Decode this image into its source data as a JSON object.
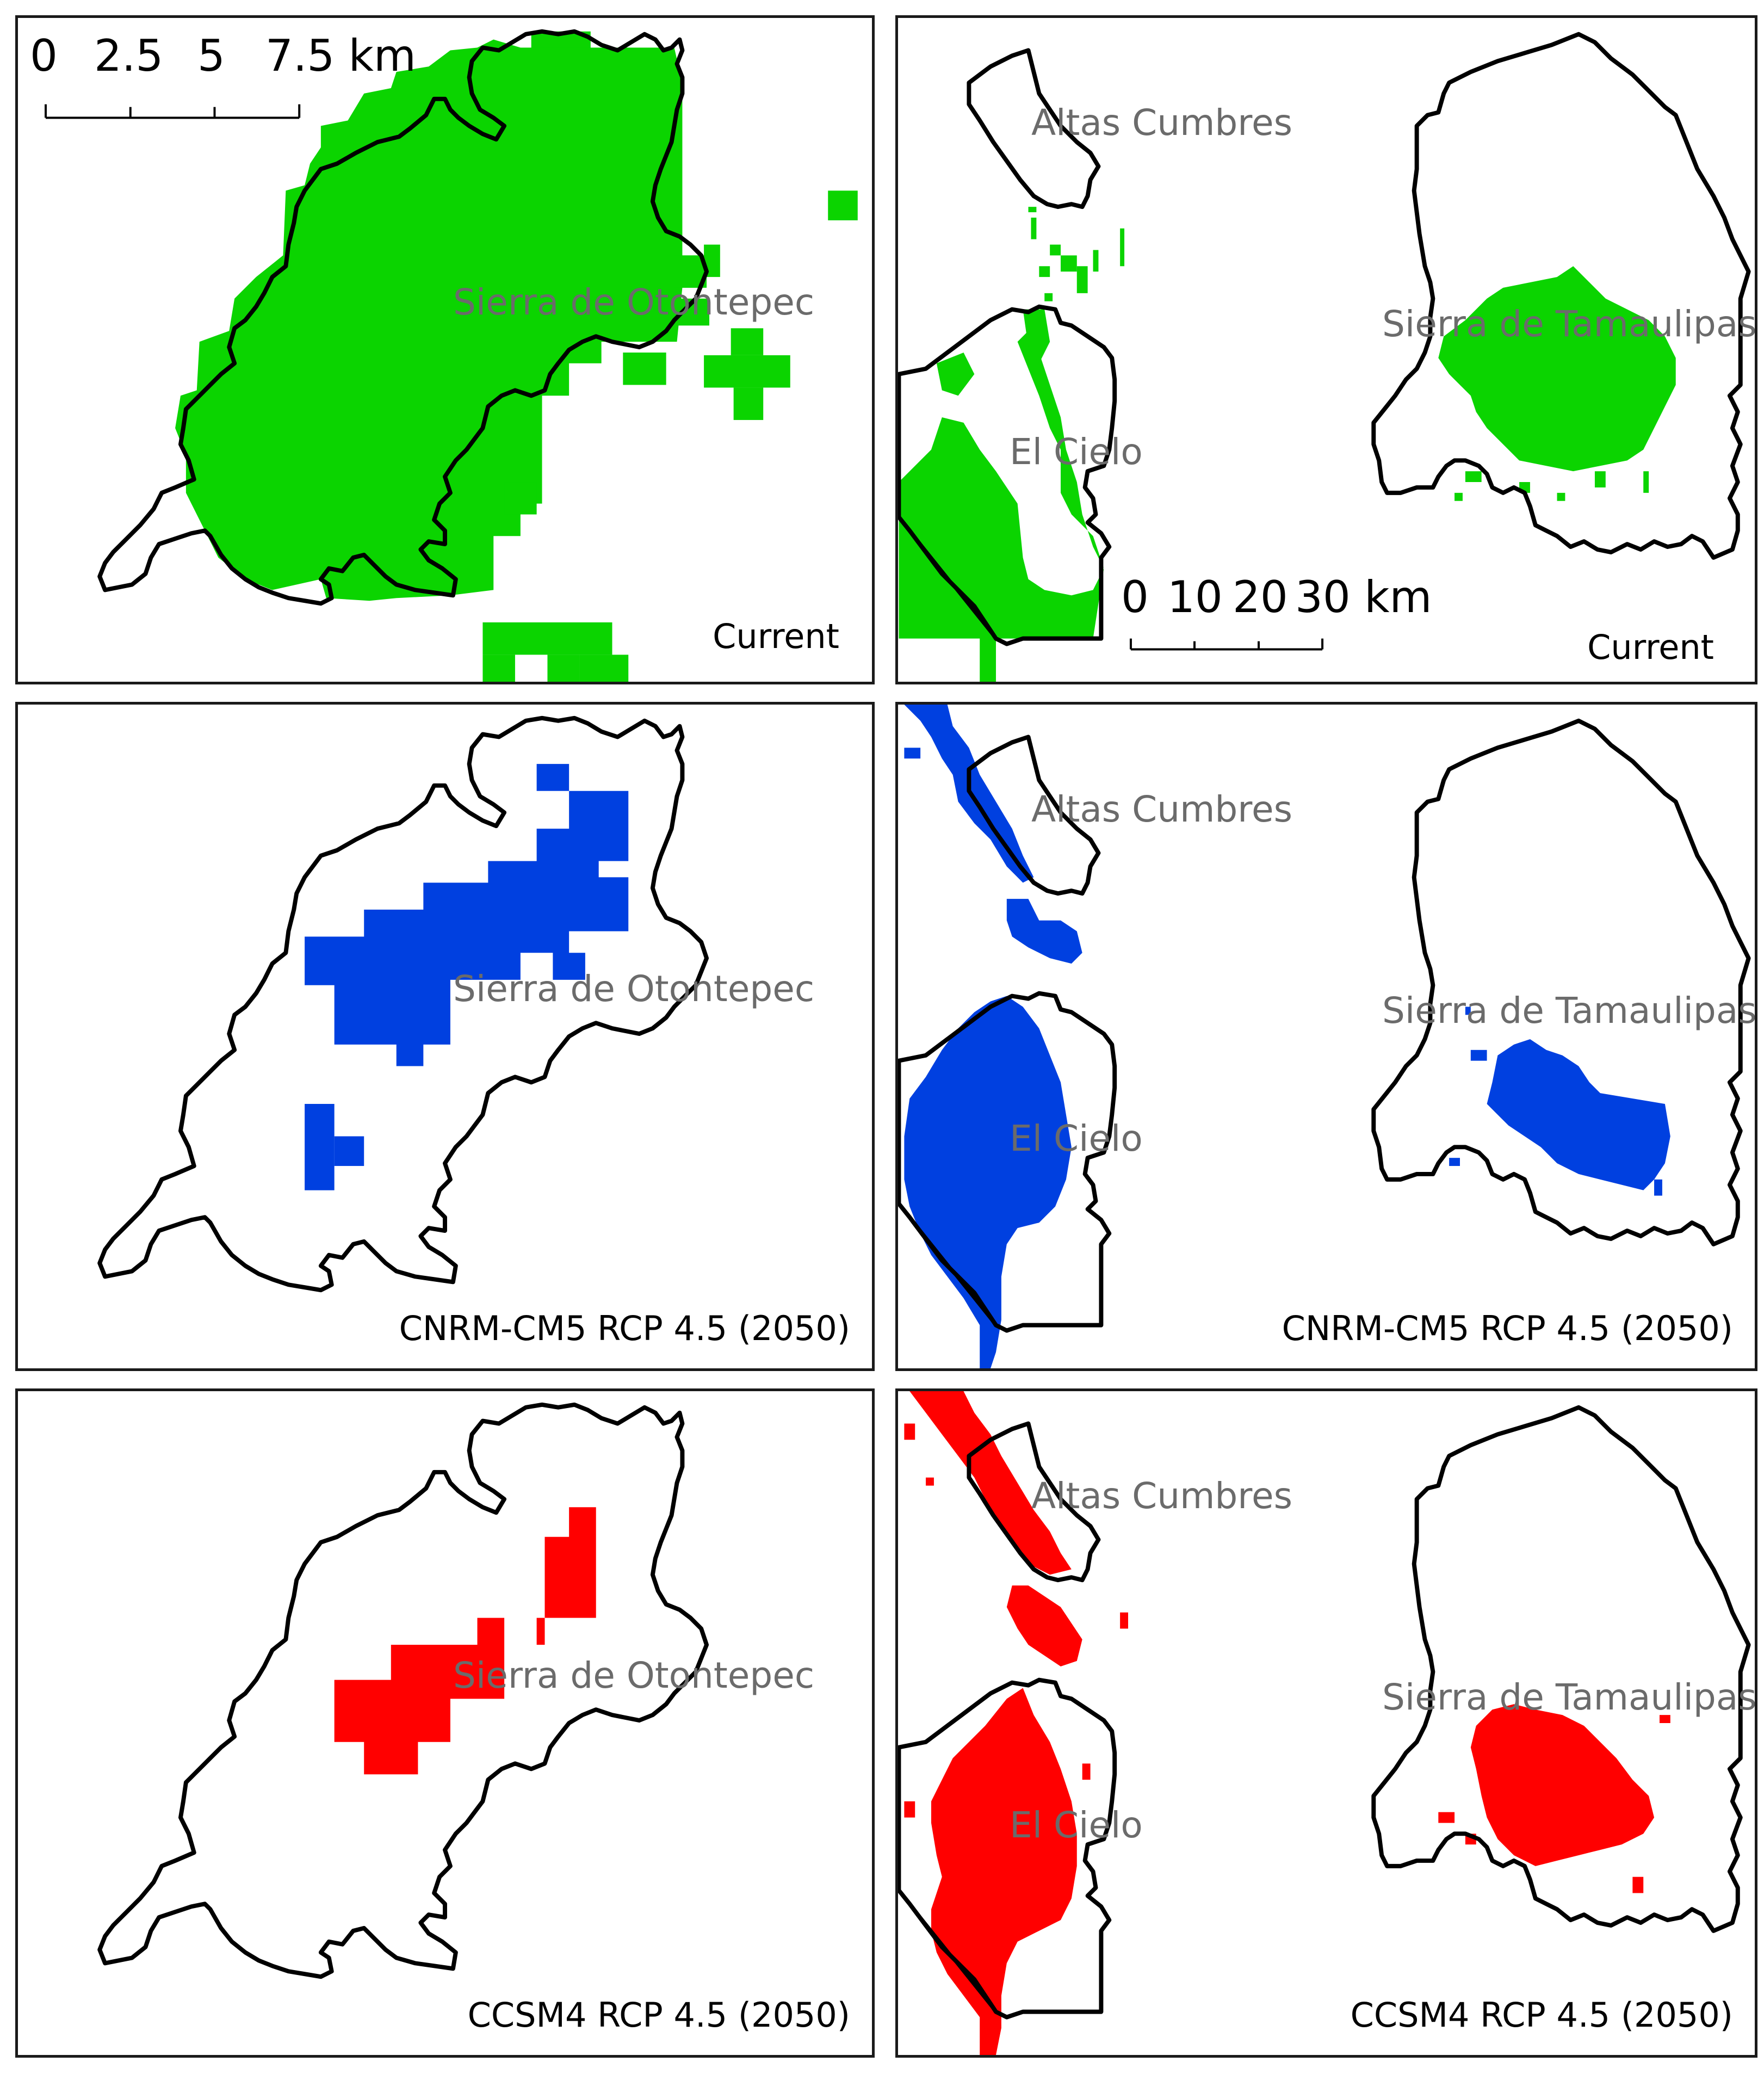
{
  "colors": {
    "current": "#0bd400",
    "cnrm": "#0040e0",
    "ccsm4": "#ff0000",
    "outline": "#000000",
    "label": "#6b6b6b"
  },
  "left_column": {
    "scalebar": {
      "ticks": [
        "0",
        "2.5",
        "5",
        "7.5 km"
      ]
    },
    "area_label": "Sierra de Otontepec",
    "panels": [
      {
        "scenario": "Current",
        "caption": "Current",
        "color_key": "current"
      },
      {
        "scenario": "CNRM-CM5 RCP 4.5 (2050)",
        "caption": "CNRM-CM5  RCP 4.5 (2050)",
        "color_key": "cnrm"
      },
      {
        "scenario": "CCSM4 RCP 4.5 (2050)",
        "caption": "CCSM4 RCP 4.5 (2050)",
        "color_key": "ccsm4"
      }
    ]
  },
  "right_column": {
    "scalebar": {
      "ticks": [
        "0",
        "10",
        "20",
        "30 km"
      ]
    },
    "area_labels": {
      "altas": "Altas Cumbres",
      "cielo": "El Cielo",
      "tamaulipas": "Sierra de Tamaulipas"
    },
    "panels": [
      {
        "scenario": "Current",
        "caption": "Current",
        "color_key": "current"
      },
      {
        "scenario": "CNRM-CM5 RCP 4.5 (2050)",
        "caption": "CNRM-CM5  RCP 4.5 (2050)",
        "color_key": "cnrm"
      },
      {
        "scenario": "CCSM4 RCP 4.5 (2050)",
        "caption": "CCSM4 RCP 4.5 (2050)",
        "color_key": "ccsm4"
      }
    ]
  }
}
